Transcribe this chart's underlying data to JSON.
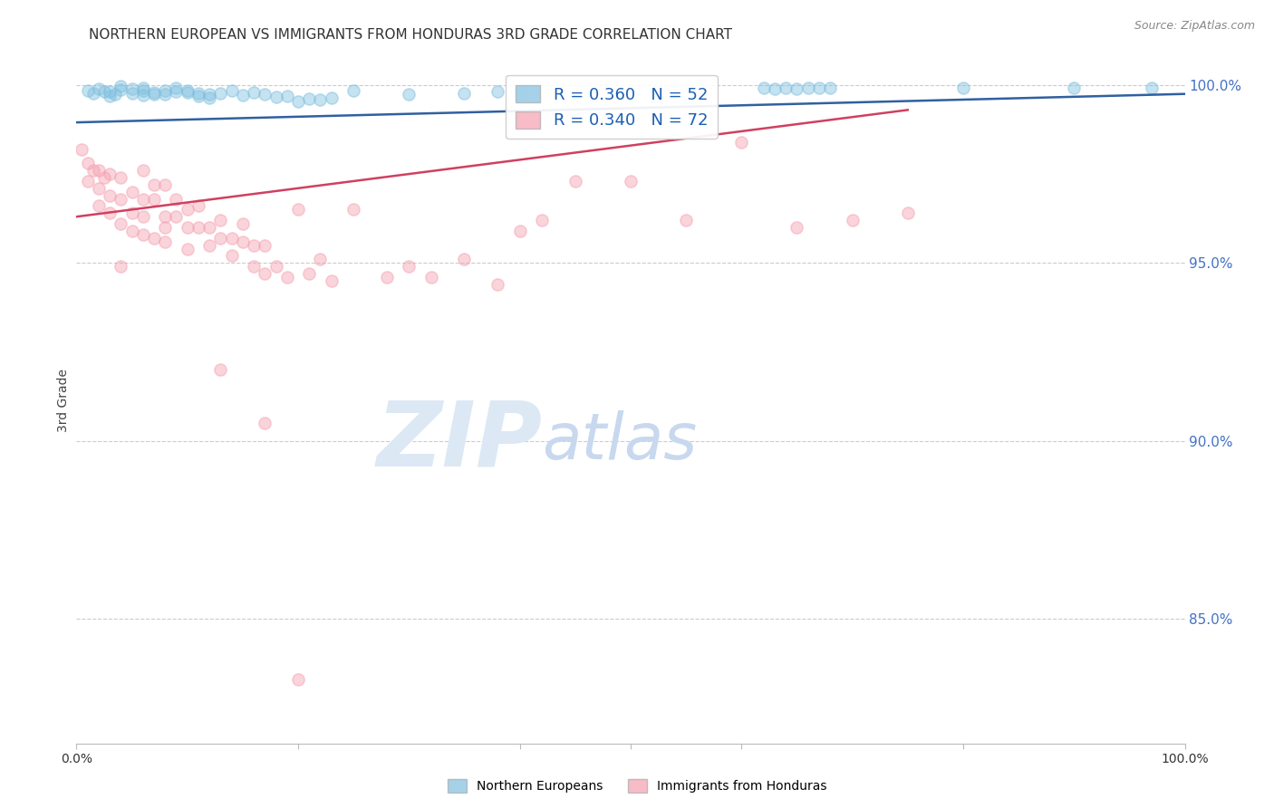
{
  "title": "NORTHERN EUROPEAN VS IMMIGRANTS FROM HONDURAS 3RD GRADE CORRELATION CHART",
  "source": "Source: ZipAtlas.com",
  "ylabel": "3rd Grade",
  "xlim": [
    0.0,
    1.0
  ],
  "ylim": [
    0.815,
    1.008
  ],
  "ytick_labels": [
    "85.0%",
    "90.0%",
    "95.0%",
    "100.0%"
  ],
  "ytick_values": [
    0.85,
    0.9,
    0.95,
    1.0
  ],
  "legend_blue_r": "R = 0.360",
  "legend_blue_n": "N = 52",
  "legend_pink_r": "R = 0.340",
  "legend_pink_n": "N = 72",
  "blue_color": "#7fbfdf",
  "pink_color": "#f4a0b0",
  "blue_line_color": "#3060a0",
  "pink_line_color": "#d04060",
  "watermark_zip": "ZIP",
  "watermark_atlas": "atlas",
  "grid_color": "#cccccc",
  "background_color": "#ffffff",
  "title_fontsize": 11,
  "legend_fontsize": 13,
  "watermark_color_zip": "#dde8f5",
  "watermark_color_atlas": "#c8d8ee",
  "watermark_fontsize": 72,
  "right_axis_color": "#4472c4",
  "marker_size": 90,
  "marker_alpha": 0.45,
  "line_width": 1.8,
  "blue_line_x0": 0.0,
  "blue_line_y0": 0.9895,
  "blue_line_x1": 1.0,
  "blue_line_y1": 0.9975,
  "pink_line_x0": 0.0,
  "pink_line_y0": 0.963,
  "pink_line_x1": 0.75,
  "pink_line_y1": 0.993,
  "blue_x": [
    0.01,
    0.015,
    0.02,
    0.025,
    0.03,
    0.03,
    0.035,
    0.04,
    0.04,
    0.05,
    0.05,
    0.06,
    0.06,
    0.06,
    0.07,
    0.07,
    0.08,
    0.08,
    0.09,
    0.09,
    0.1,
    0.1,
    0.11,
    0.11,
    0.12,
    0.12,
    0.13,
    0.14,
    0.15,
    0.16,
    0.17,
    0.18,
    0.19,
    0.2,
    0.21,
    0.22,
    0.23,
    0.25,
    0.3,
    0.35,
    0.62,
    0.63,
    0.64,
    0.65,
    0.66,
    0.67,
    0.68,
    0.8,
    0.9,
    0.97,
    0.4,
    0.38
  ],
  "blue_y": [
    0.9985,
    0.9978,
    0.999,
    0.9982,
    0.9983,
    0.9968,
    0.9975,
    0.9988,
    0.9996,
    0.9976,
    0.999,
    0.9971,
    0.9985,
    0.9993,
    0.998,
    0.9973,
    0.9985,
    0.9975,
    0.9981,
    0.9991,
    0.9979,
    0.9984,
    0.9977,
    0.9969,
    0.9975,
    0.9965,
    0.9978,
    0.9985,
    0.9972,
    0.998,
    0.9973,
    0.9967,
    0.997,
    0.9955,
    0.9962,
    0.9958,
    0.9965,
    0.9985,
    0.9975,
    0.9978,
    0.9993,
    0.999,
    0.9993,
    0.999,
    0.9993,
    0.9992,
    0.9991,
    0.9993,
    0.9993,
    0.9992,
    0.9976,
    0.9983
  ],
  "pink_x": [
    0.005,
    0.01,
    0.01,
    0.015,
    0.02,
    0.02,
    0.02,
    0.025,
    0.03,
    0.03,
    0.03,
    0.04,
    0.04,
    0.04,
    0.05,
    0.05,
    0.05,
    0.06,
    0.06,
    0.06,
    0.06,
    0.07,
    0.07,
    0.07,
    0.08,
    0.08,
    0.08,
    0.09,
    0.09,
    0.1,
    0.1,
    0.1,
    0.11,
    0.11,
    0.12,
    0.12,
    0.13,
    0.13,
    0.14,
    0.14,
    0.15,
    0.15,
    0.16,
    0.16,
    0.17,
    0.17,
    0.18,
    0.19,
    0.2,
    0.21,
    0.22,
    0.23,
    0.25,
    0.28,
    0.3,
    0.32,
    0.35,
    0.38,
    0.4,
    0.42,
    0.45,
    0.5,
    0.55,
    0.6,
    0.65,
    0.7,
    0.75,
    0.04,
    0.08,
    0.13,
    0.17,
    0.2
  ],
  "pink_y": [
    0.982,
    0.978,
    0.973,
    0.976,
    0.976,
    0.971,
    0.966,
    0.974,
    0.969,
    0.975,
    0.964,
    0.968,
    0.974,
    0.961,
    0.964,
    0.97,
    0.959,
    0.963,
    0.968,
    0.976,
    0.958,
    0.968,
    0.957,
    0.972,
    0.963,
    0.972,
    0.956,
    0.963,
    0.968,
    0.965,
    0.96,
    0.954,
    0.96,
    0.966,
    0.96,
    0.955,
    0.957,
    0.962,
    0.957,
    0.952,
    0.956,
    0.961,
    0.949,
    0.955,
    0.955,
    0.947,
    0.949,
    0.946,
    0.965,
    0.947,
    0.951,
    0.945,
    0.965,
    0.946,
    0.949,
    0.946,
    0.951,
    0.944,
    0.959,
    0.962,
    0.973,
    0.973,
    0.962,
    0.984,
    0.96,
    0.962,
    0.964,
    0.949,
    0.96,
    0.92,
    0.905,
    0.833
  ]
}
